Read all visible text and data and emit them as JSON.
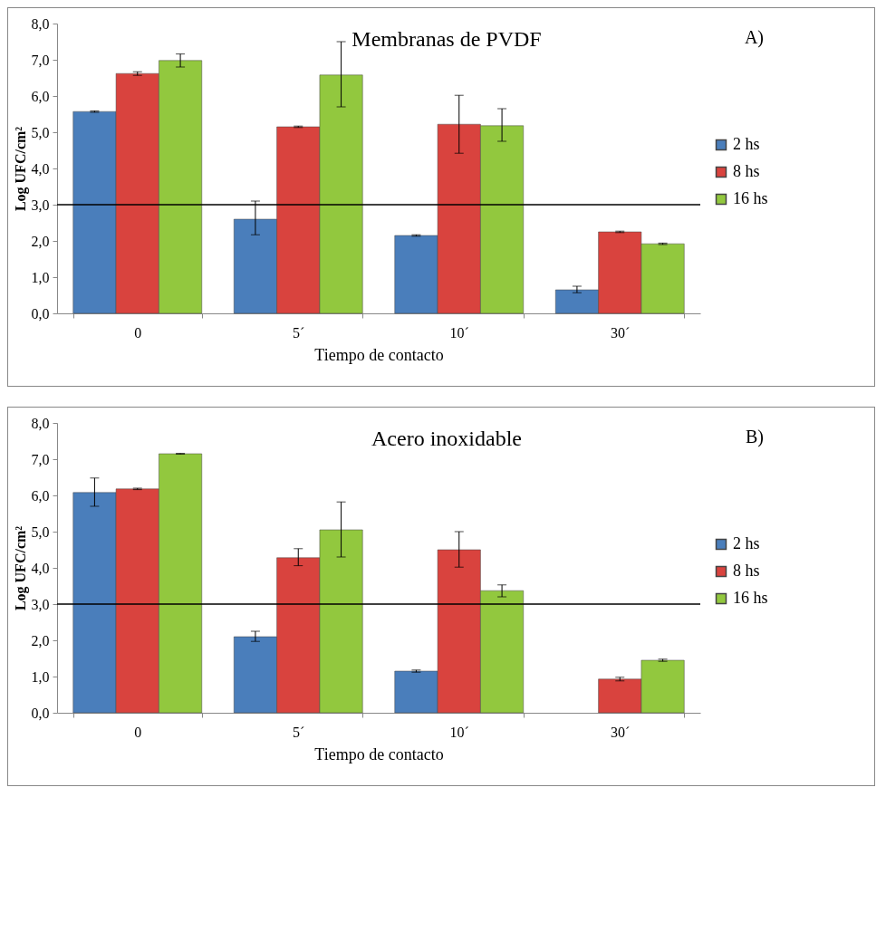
{
  "chart_data": [
    {
      "type": "bar",
      "title": "Membranas de PVDF",
      "xlabel": "Tiempo de contacto",
      "ylabel": "Log UFC/cm²",
      "annotations": [
        "A)"
      ],
      "categories": [
        "0",
        "5´",
        "10´",
        "30´"
      ],
      "series": [
        {
          "name": "2 hs",
          "color": "#4a7ebb",
          "values": [
            5.57,
            2.6,
            2.15,
            0.65
          ],
          "errors": [
            0.02,
            [
              2.17,
              3.1
            ],
            0.02,
            [
              0.57,
              0.75
            ]
          ]
        },
        {
          "name": "8 hs",
          "color": "#d9433e",
          "values": [
            6.62,
            5.15,
            5.22,
            2.25
          ],
          "errors": [
            0.05,
            0.02,
            [
              4.42,
              6.02
            ],
            0.02
          ]
        },
        {
          "name": "16 hs",
          "color": "#92c83e",
          "values": [
            6.98,
            6.58,
            5.18,
            1.92
          ],
          "errors": [
            0.18,
            [
              5.7,
              7.5
            ],
            [
              4.75,
              5.65
            ],
            0.02
          ]
        }
      ],
      "ylim": [
        0,
        8
      ],
      "yticks": [
        {
          "value": 0,
          "label": "0,0"
        },
        {
          "value": 1,
          "label": "1,0"
        },
        {
          "value": 2,
          "label": "2,0"
        },
        {
          "value": 3,
          "label": "3,0"
        },
        {
          "value": 4,
          "label": "4,0"
        },
        {
          "value": 5,
          "label": "5,0"
        },
        {
          "value": 6,
          "label": "6,0"
        },
        {
          "value": 7,
          "label": "7,0"
        },
        {
          "value": 8,
          "label": "8,0"
        }
      ],
      "ref_lines": [
        {
          "axis": "y",
          "value": 3,
          "color": "#000000"
        }
      ],
      "legend": "right",
      "grid": false
    },
    {
      "type": "bar",
      "title": "Acero inoxidable",
      "xlabel": "Tiempo de contacto",
      "ylabel": "Log UFC/cm²",
      "annotations": [
        "B)"
      ],
      "categories": [
        "0",
        "5´",
        "10´",
        "30´"
      ],
      "series": [
        {
          "name": "2 hs",
          "color": "#4a7ebb",
          "values": [
            6.08,
            2.1,
            1.15,
            null
          ],
          "errors": [
            [
              5.7,
              6.48
            ],
            [
              1.97,
              2.25
            ],
            0.03,
            null
          ]
        },
        {
          "name": "8 hs",
          "color": "#d9433e",
          "values": [
            6.18,
            4.28,
            4.5,
            0.93
          ],
          "errors": [
            0.02,
            [
              4.06,
              4.53
            ],
            [
              4.02,
              5.0
            ],
            0.05
          ]
        },
        {
          "name": "16 hs",
          "color": "#92c83e",
          "values": [
            7.15,
            5.05,
            3.37,
            1.45
          ],
          "errors": [
            0.01,
            [
              4.3,
              5.82
            ],
            [
              3.2,
              3.53
            ],
            0.03
          ]
        }
      ],
      "ylim": [
        0,
        8
      ],
      "yticks": [
        {
          "value": 0,
          "label": "0,0"
        },
        {
          "value": 1,
          "label": "1,0"
        },
        {
          "value": 2,
          "label": "2,0"
        },
        {
          "value": 3,
          "label": "3,0"
        },
        {
          "value": 4,
          "label": "4,0"
        },
        {
          "value": 5,
          "label": "5,0"
        },
        {
          "value": 6,
          "label": "6,0"
        },
        {
          "value": 7,
          "label": "7,0"
        },
        {
          "value": 8,
          "label": "8,0"
        }
      ],
      "ref_lines": [
        {
          "axis": "y",
          "value": 3,
          "color": "#000000"
        }
      ],
      "legend": "right",
      "grid": false
    }
  ]
}
